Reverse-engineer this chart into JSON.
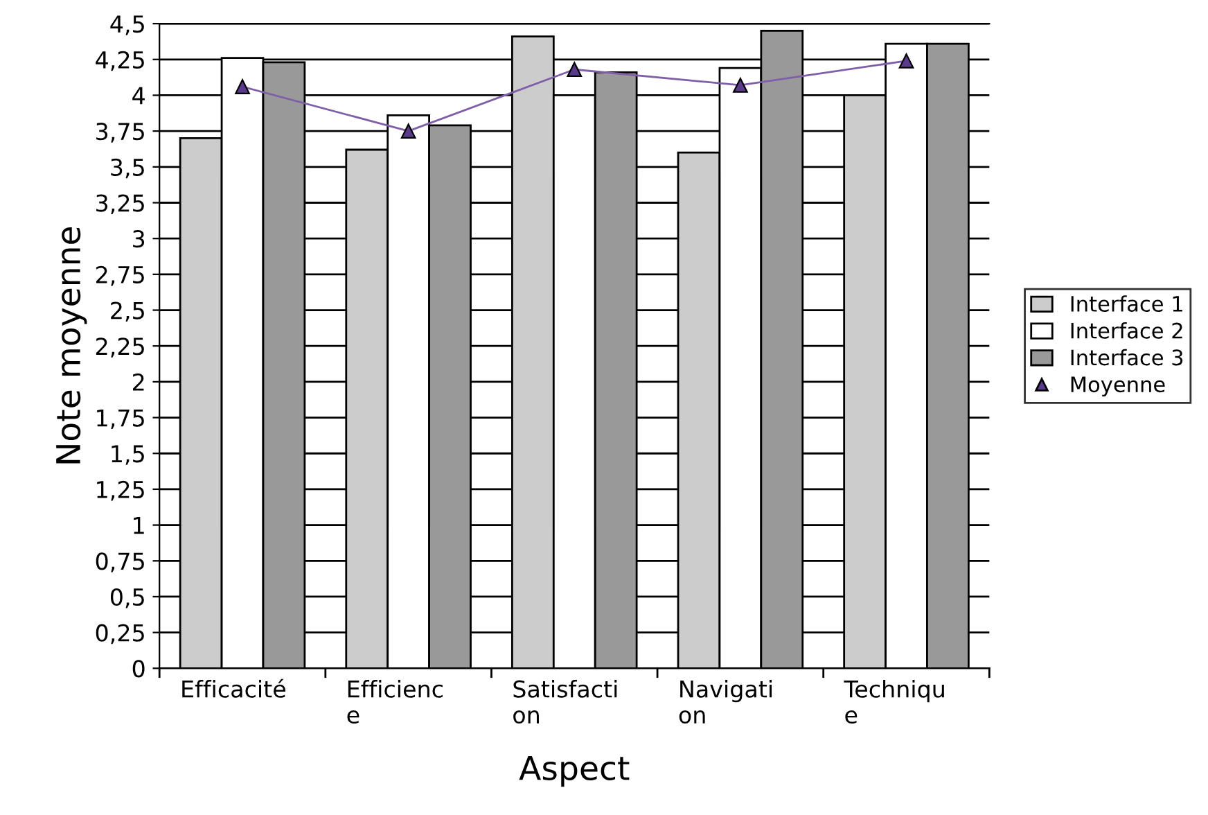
{
  "chart_data": {
    "type": "bar",
    "xlabel": "Aspect",
    "ylabel": "Note moyenne",
    "categories": [
      "Efficacité",
      "Efficienc\ne",
      "Satisfacti\non",
      "Navigati\non",
      "Techniqu\ne"
    ],
    "series": [
      {
        "name": "Interface 1",
        "color": "#cccccc",
        "values": [
          3.7,
          3.62,
          4.41,
          3.6,
          4.0
        ]
      },
      {
        "name": "Interface 2",
        "color": "#ffffff",
        "values": [
          4.26,
          3.86,
          4.0,
          4.19,
          4.36
        ]
      },
      {
        "name": "Interface 3",
        "color": "#999999",
        "values": [
          4.23,
          3.79,
          4.16,
          4.45,
          4.36
        ]
      },
      {
        "name": "Moyenne",
        "type": "line",
        "color": "#7f5fa8",
        "marker": "triangle",
        "values": [
          4.06,
          3.75,
          4.18,
          4.07,
          4.24
        ]
      }
    ],
    "ylim": [
      0,
      4.5
    ],
    "yticks": [
      0,
      {
        "value": 0.25,
        "label": "0,25"
      },
      {
        "value": 0.5,
        "label": "0,5"
      },
      {
        "value": 0.75,
        "label": "0,75"
      },
      1,
      {
        "value": 1.25,
        "label": "1,25"
      },
      {
        "value": 1.5,
        "label": "1,5"
      },
      {
        "value": 1.75,
        "label": "1,75"
      },
      2,
      {
        "value": 2.25,
        "label": "2,25"
      },
      {
        "value": 2.5,
        "label": "2,5"
      },
      {
        "value": 2.75,
        "label": "2,75"
      },
      3,
      {
        "value": 3.25,
        "label": "3,25"
      },
      {
        "value": 3.5,
        "label": "3,5"
      },
      {
        "value": 3.75,
        "label": "3,75"
      },
      4,
      {
        "value": 4.25,
        "label": "4,25"
      },
      {
        "value": 4.5,
        "label": "4,5"
      }
    ],
    "grid": "y",
    "legend": "right"
  }
}
